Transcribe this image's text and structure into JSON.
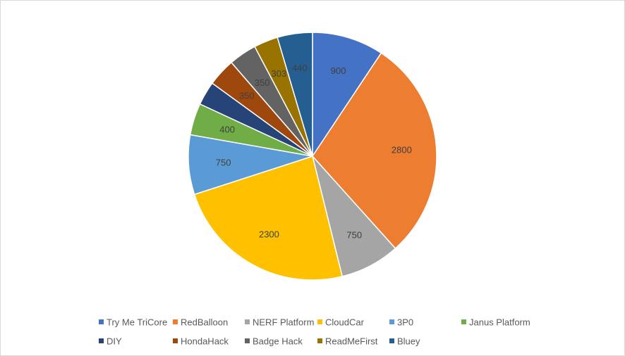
{
  "chart_data": {
    "type": "pie",
    "title": "",
    "categories": [
      "Try Me TriCore",
      "RedBalloon",
      "NERF Platform",
      "CloudCar",
      "3P0",
      "Janus Platform",
      "DIY",
      "HondaHack",
      "Badge Hack",
      "ReadMeFirst",
      "Bluey"
    ],
    "values": [
      900,
      2800,
      750,
      2300,
      750,
      400,
      300,
      350,
      350,
      303,
      440
    ],
    "data_labels": [
      "900",
      "2800",
      "750",
      "2300",
      "750",
      "400",
      "",
      "350",
      "350",
      "303",
      "440"
    ],
    "colors": [
      "#4472C4",
      "#ED7D31",
      "#A5A5A5",
      "#FFC000",
      "#5B9BD5",
      "#70AD47",
      "#264478",
      "#9E480E",
      "#636363",
      "#997300",
      "#255E91"
    ],
    "legend_position": "bottom",
    "start_angle": "12 o'clock",
    "direction": "clockwise"
  }
}
